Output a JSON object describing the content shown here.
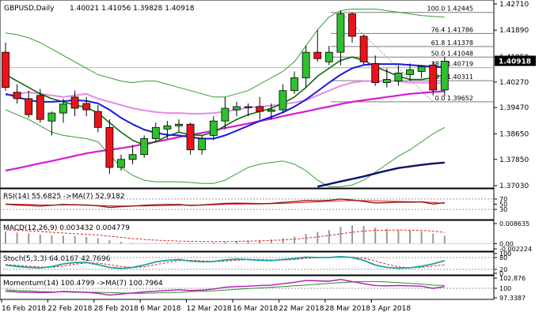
{
  "header": {
    "symbol": "GBPUSD,Daily",
    "ohlc": "1.40021 1.41056 1.39828 1.40918"
  },
  "chart_data": {
    "type": "candlestick",
    "price_axis": {
      "ticks": [
        1.4271,
        1.4189,
        1.4105,
        1.4027,
        1.3947,
        1.3865,
        1.3785,
        1.3703
      ],
      "tick_labels": [
        "1.42710",
        "1.41890",
        "1.41050",
        "1.40270",
        "1.39470",
        "1.38650",
        "1.37850",
        "1.37030"
      ],
      "current_price": "1.40918"
    },
    "x_labels": [
      "16 Feb 2018",
      "22 Feb 2018",
      "28 Feb 2018",
      "6 Mar 2018",
      "12 Mar 2018",
      "16 Mar 2018",
      "22 Mar 2018",
      "28 Mar 2018",
      "3 Apr 2018"
    ],
    "fibonacci": [
      {
        "level": "100.0",
        "price": "1.42445"
      },
      {
        "level": "76.4",
        "price": "1.41786"
      },
      {
        "level": "61.8",
        "price": "1.41378"
      },
      {
        "level": "50.0",
        "price": "1.41048"
      },
      {
        "level": "38.2",
        "price": "1.40719"
      },
      {
        "level": "23.6",
        "price": "1.40311"
      },
      {
        "level": "0.0",
        "price": "1.39652"
      }
    ],
    "candles": [
      {
        "o": 1.412,
        "h": 1.415,
        "l": 1.4,
        "c": 1.401
      },
      {
        "o": 1.3995,
        "h": 1.402,
        "l": 1.396,
        "c": 1.3975
      },
      {
        "o": 1.3975,
        "h": 1.4,
        "l": 1.3915,
        "c": 1.3925
      },
      {
        "o": 1.3985,
        "h": 1.4005,
        "l": 1.39,
        "c": 1.391
      },
      {
        "o": 1.3905,
        "h": 1.3935,
        "l": 1.386,
        "c": 1.393
      },
      {
        "o": 1.393,
        "h": 1.3975,
        "l": 1.39,
        "c": 1.3958
      },
      {
        "o": 1.398,
        "h": 1.4,
        "l": 1.392,
        "c": 1.3945
      },
      {
        "o": 1.396,
        "h": 1.398,
        "l": 1.392,
        "c": 1.394
      },
      {
        "o": 1.3935,
        "h": 1.3955,
        "l": 1.387,
        "c": 1.3885
      },
      {
        "o": 1.3885,
        "h": 1.391,
        "l": 1.374,
        "c": 1.376
      },
      {
        "o": 1.376,
        "h": 1.38,
        "l": 1.375,
        "c": 1.3785
      },
      {
        "o": 1.3785,
        "h": 1.383,
        "l": 1.377,
        "c": 1.38
      },
      {
        "o": 1.38,
        "h": 1.386,
        "l": 1.379,
        "c": 1.385
      },
      {
        "o": 1.385,
        "h": 1.39,
        "l": 1.384,
        "c": 1.3885
      },
      {
        "o": 1.388,
        "h": 1.3905,
        "l": 1.385,
        "c": 1.389
      },
      {
        "o": 1.389,
        "h": 1.391,
        "l": 1.387,
        "c": 1.3895
      },
      {
        "o": 1.3895,
        "h": 1.39,
        "l": 1.38,
        "c": 1.3815
      },
      {
        "o": 1.3815,
        "h": 1.386,
        "l": 1.38,
        "c": 1.385
      },
      {
        "o": 1.386,
        "h": 1.392,
        "l": 1.3845,
        "c": 1.3905
      },
      {
        "o": 1.3905,
        "h": 1.398,
        "l": 1.388,
        "c": 1.3945
      },
      {
        "o": 1.394,
        "h": 1.3965,
        "l": 1.392,
        "c": 1.395
      },
      {
        "o": 1.395,
        "h": 1.396,
        "l": 1.392,
        "c": 1.3948
      },
      {
        "o": 1.395,
        "h": 1.398,
        "l": 1.391,
        "c": 1.3935
      },
      {
        "o": 1.3935,
        "h": 1.396,
        "l": 1.391,
        "c": 1.394
      },
      {
        "o": 1.394,
        "h": 1.402,
        "l": 1.393,
        "c": 1.4
      },
      {
        "o": 1.4,
        "h": 1.406,
        "l": 1.399,
        "c": 1.404
      },
      {
        "o": 1.404,
        "h": 1.414,
        "l": 1.401,
        "c": 1.412
      },
      {
        "o": 1.412,
        "h": 1.419,
        "l": 1.409,
        "c": 1.41
      },
      {
        "o": 1.409,
        "h": 1.414,
        "l": 1.408,
        "c": 1.412
      },
      {
        "o": 1.412,
        "h": 1.425,
        "l": 1.408,
        "c": 1.424
      },
      {
        "o": 1.424,
        "h": 1.4245,
        "l": 1.415,
        "c": 1.417
      },
      {
        "o": 1.417,
        "h": 1.4175,
        "l": 1.408,
        "c": 1.409
      },
      {
        "o": 1.4085,
        "h": 1.411,
        "l": 1.4015,
        "c": 1.4025
      },
      {
        "o": 1.4025,
        "h": 1.407,
        "l": 1.401,
        "c": 1.4035
      },
      {
        "o": 1.403,
        "h": 1.408,
        "l": 1.4015,
        "c": 1.4055
      },
      {
        "o": 1.405,
        "h": 1.4085,
        "l": 1.403,
        "c": 1.4065
      },
      {
        "o": 1.406,
        "h": 1.408,
        "l": 1.404,
        "c": 1.4075
      },
      {
        "o": 1.408,
        "h": 1.409,
        "l": 1.3985,
        "c": 1.4002
      },
      {
        "o": 1.4002,
        "h": 1.4106,
        "l": 1.3983,
        "c": 1.4092
      }
    ],
    "moving_averages": {
      "green": [
        1.405,
        1.403,
        1.401,
        1.399,
        1.3975,
        1.3965,
        1.3955,
        1.3948,
        1.393,
        1.39,
        1.387,
        1.3845,
        1.383,
        1.384,
        1.3858,
        1.387,
        1.3862,
        1.386,
        1.387,
        1.389,
        1.391,
        1.3925,
        1.3935,
        1.3945,
        1.396,
        1.398,
        1.401,
        1.4045,
        1.407,
        1.4095,
        1.4105,
        1.4095,
        1.4075,
        1.406,
        1.4045,
        1.4035,
        1.4035,
        1.404,
        1.405
      ],
      "blue": [
        1.399,
        1.398,
        1.397,
        1.3965,
        1.3965,
        1.3967,
        1.397,
        1.3968,
        1.396,
        1.394,
        1.3915,
        1.3895,
        1.3878,
        1.3868,
        1.3862,
        1.386,
        1.3855,
        1.385,
        1.385,
        1.386,
        1.3875,
        1.389,
        1.3905,
        1.3918,
        1.3932,
        1.395,
        1.3972,
        1.3998,
        1.4025,
        1.405,
        1.407,
        1.408,
        1.4083,
        1.4083,
        1.4083,
        1.408,
        1.4078,
        1.4075,
        1.4073
      ],
      "magenta_ma": [
        1.375,
        1.3757,
        1.3765,
        1.3773,
        1.378,
        1.3788,
        1.3796,
        1.3804,
        1.381,
        1.3815,
        1.382,
        1.3826,
        1.3833,
        1.384,
        1.3847,
        1.3855,
        1.3862,
        1.3868,
        1.3875,
        1.3883,
        1.389,
        1.3897,
        1.3905,
        1.3912,
        1.392,
        1.3928,
        1.3935,
        1.3943,
        1.395,
        1.3958,
        1.3965,
        1.397,
        1.3975,
        1.398,
        1.3985,
        1.399,
        1.3993,
        1.3996,
        1.3998
      ],
      "pink": [
        1.3985,
        1.399,
        1.3995,
        1.399,
        1.3985,
        1.398,
        1.3985,
        1.399,
        1.3975,
        1.3965,
        1.3955,
        1.3945,
        1.3938,
        1.3933,
        1.393,
        1.393,
        1.3928,
        1.3928,
        1.393,
        1.3935,
        1.394,
        1.3947,
        1.395,
        1.3953,
        1.3957,
        1.3963,
        1.397,
        1.3985,
        1.4,
        1.4015,
        1.4025,
        1.403,
        1.403,
        1.403,
        1.403,
        1.4025,
        1.4025,
        1.4025,
        1.4022
      ],
      "bb_upper": [
        1.418,
        1.4175,
        1.4165,
        1.415,
        1.413,
        1.411,
        1.409,
        1.407,
        1.405,
        1.404,
        1.403,
        1.4025,
        1.403,
        1.403,
        1.402,
        1.401,
        1.4,
        1.399,
        1.398,
        1.398,
        1.399,
        1.4,
        1.402,
        1.404,
        1.406,
        1.409,
        1.414,
        1.419,
        1.423,
        1.425,
        1.4255,
        1.4255,
        1.4255,
        1.425,
        1.4245,
        1.424,
        1.4235,
        1.4232,
        1.423
      ],
      "bb_lower": [
        1.394,
        1.3925,
        1.391,
        1.389,
        1.387,
        1.386,
        1.3855,
        1.385,
        1.384,
        1.38,
        1.376,
        1.3735,
        1.372,
        1.3715,
        1.3715,
        1.3715,
        1.3713,
        1.371,
        1.371,
        1.372,
        1.374,
        1.376,
        1.377,
        1.3775,
        1.378,
        1.377,
        1.375,
        1.372,
        1.37,
        1.37,
        1.3705,
        1.372,
        1.3745,
        1.377,
        1.3795,
        1.3815,
        1.384,
        1.3865,
        1.3885
      ],
      "navy": [
        null,
        null,
        null,
        null,
        null,
        null,
        null,
        null,
        null,
        null,
        null,
        null,
        null,
        null,
        null,
        null,
        null,
        null,
        null,
        null,
        null,
        null,
        null,
        null,
        null,
        null,
        null,
        1.37,
        1.3708,
        1.3716,
        1.3724,
        1.3732,
        1.3741,
        1.375,
        1.3758,
        1.3763,
        1.3768,
        1.3772,
        1.3775
      ]
    },
    "rsi": {
      "label": "RSI(14) 55.6825 ->MA(7) 52.9182",
      "ticks": [
        {
          "v": 70,
          "label": "70"
        },
        {
          "v": 50,
          "label": "50"
        },
        {
          "v": 30,
          "label": "30"
        }
      ],
      "values": [
        50,
        47,
        45,
        43,
        46,
        49,
        48,
        47,
        44,
        38,
        41,
        43,
        46,
        48,
        49,
        49,
        45,
        47,
        50,
        53,
        54,
        53,
        52,
        53,
        57,
        60,
        64,
        63,
        65,
        70,
        66,
        61,
        55,
        56,
        58,
        58,
        59,
        51,
        55.7
      ],
      "ma": [
        51,
        50,
        49,
        48,
        47,
        47,
        47,
        46,
        45,
        44,
        43,
        43,
        43,
        44,
        45,
        46,
        47,
        47,
        48,
        49,
        50,
        51,
        51,
        52,
        53,
        55,
        57,
        59,
        61,
        63,
        64,
        64,
        63,
        62,
        61,
        60,
        59,
        57,
        52.9
      ]
    },
    "macd": {
      "label": "MACD(12,26,9) 0.003432 0.004779",
      "ticks": [
        {
          "v": 0.008635,
          "label": "0.008635"
        },
        {
          "v": 0,
          "label": "0.00"
        },
        {
          "v": -0.002224,
          "label": "-0.002224"
        }
      ],
      "histogram": [
        0.0052,
        0.0048,
        0.0044,
        0.004,
        0.0036,
        0.0034,
        0.0032,
        0.0029,
        0.0024,
        0.0015,
        0.0008,
        0.0003,
        0.0001,
        0.0002,
        0.0004,
        0.0005,
        0.0003,
        0.0003,
        0.0005,
        0.0008,
        0.0012,
        0.0014,
        0.0016,
        0.0018,
        0.0023,
        0.003,
        0.0042,
        0.0051,
        0.0059,
        0.0072,
        0.0078,
        0.0076,
        0.0069,
        0.0064,
        0.006,
        0.0056,
        0.0053,
        0.0043,
        0.0034
      ],
      "signal": [
        0.006,
        0.0058,
        0.0055,
        0.0052,
        0.0049,
        0.0046,
        0.0043,
        0.004,
        0.0037,
        0.0032,
        0.0027,
        0.0022,
        0.0018,
        0.0015,
        0.0013,
        0.0011,
        0.001,
        0.0009,
        0.0009,
        0.0009,
        0.001,
        0.0011,
        0.0012,
        0.0014,
        0.0016,
        0.0019,
        0.0024,
        0.0029,
        0.0035,
        0.0042,
        0.0049,
        0.0054,
        0.0057,
        0.0058,
        0.0059,
        0.0058,
        0.0057,
        0.0054,
        0.0048
      ]
    },
    "stoch": {
      "label": "Stoch(5,3,3) 64.0167 42.7696",
      "ticks": [
        {
          "v": 100,
          "label": "100"
        },
        {
          "v": 80,
          "label": "80"
        },
        {
          "v": 20,
          "label": "20"
        },
        {
          "v": 0,
          "label": "0"
        }
      ],
      "k": [
        42,
        35,
        30,
        28,
        34,
        48,
        55,
        55,
        44,
        30,
        25,
        30,
        42,
        58,
        66,
        70,
        62,
        58,
        60,
        68,
        72,
        70,
        66,
        65,
        70,
        75,
        82,
        80,
        80,
        85,
        80,
        66,
        42,
        30,
        26,
        28,
        36,
        48,
        64
      ],
      "d": [
        45,
        40,
        36,
        32,
        31,
        37,
        46,
        53,
        52,
        44,
        35,
        30,
        33,
        44,
        55,
        65,
        66,
        64,
        60,
        62,
        66,
        70,
        70,
        68,
        67,
        70,
        76,
        79,
        81,
        82,
        82,
        77,
        63,
        46,
        33,
        28,
        30,
        38,
        42.8
      ]
    },
    "momentum": {
      "label": "Momentum(14) 100.4799 ->MA(7) 100.7964",
      "ticks": [
        {
          "v": 102.876,
          "label": "102.876"
        },
        {
          "v": 100,
          "label": "100"
        },
        {
          "v": 97.3387,
          "label": "97.3387"
        }
      ],
      "values": [
        99.2,
        99.0,
        98.9,
        98.8,
        98.9,
        99.1,
        99.0,
        98.9,
        98.6,
        98.1,
        98.4,
        98.7,
        99.0,
        99.2,
        99.4,
        99.6,
        99.4,
        99.5,
        99.8,
        100.3,
        100.5,
        100.6,
        100.8,
        100.9,
        101.3,
        101.7,
        102.2,
        102.1,
        102.0,
        102.5,
        101.9,
        101.3,
        100.8,
        100.7,
        100.8,
        100.7,
        100.6,
        100.0,
        100.48
      ],
      "ma": [
        99.6,
        99.4,
        99.3,
        99.1,
        99.0,
        99.0,
        98.9,
        98.9,
        98.9,
        98.8,
        98.7,
        98.6,
        98.6,
        98.7,
        98.8,
        98.9,
        99.1,
        99.2,
        99.3,
        99.5,
        99.7,
        99.9,
        100.1,
        100.3,
        100.5,
        100.7,
        100.9,
        101.2,
        101.4,
        101.6,
        101.8,
        101.9,
        101.9,
        101.8,
        101.6,
        101.4,
        101.2,
        100.9,
        100.8
      ]
    }
  }
}
